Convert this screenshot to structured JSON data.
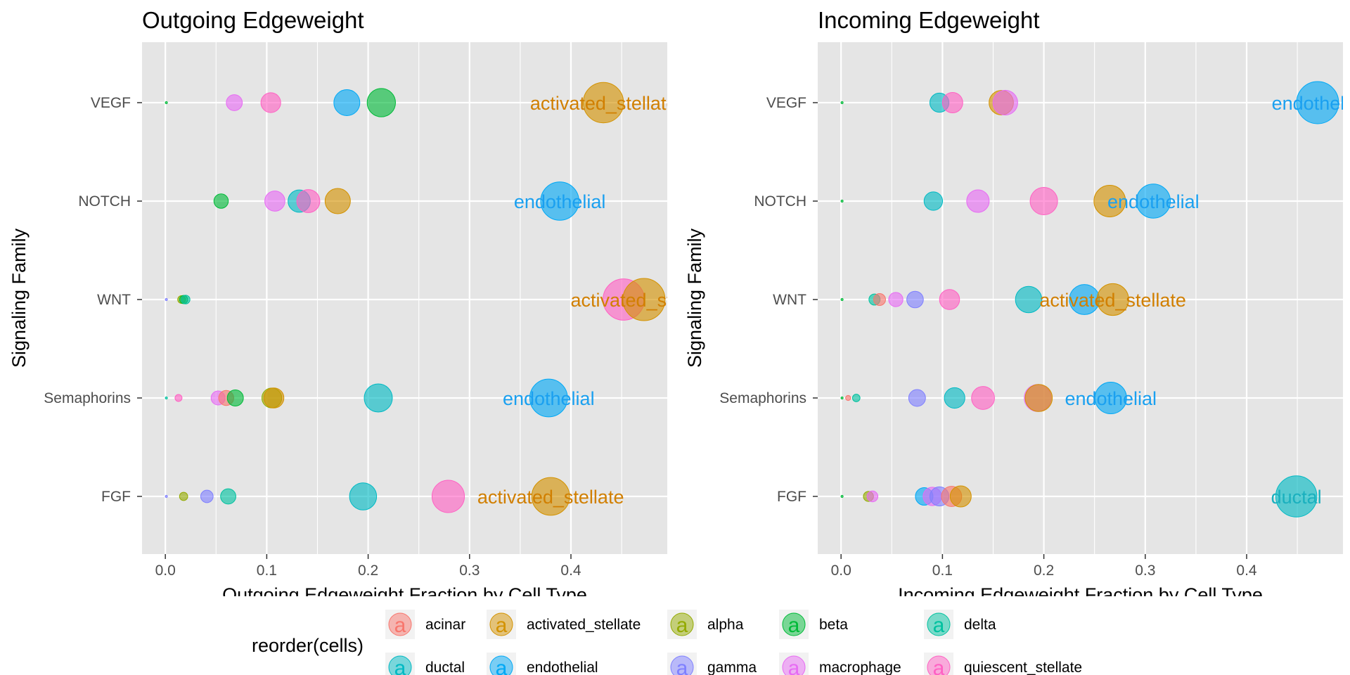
{
  "chart_data": [
    {
      "type": "scatter",
      "title": "Outgoing Edgeweight",
      "xlabel": "Outgoing Edgeweight Fraction by Cell Type",
      "ylabel": "Signaling Family",
      "xlim": [
        -0.023,
        0.495
      ],
      "x_ticks": [
        "0.0",
        "0.1",
        "0.2",
        "0.3",
        "0.4"
      ],
      "categories": [
        "FGF",
        "Semaphorins",
        "WNT",
        "NOTCH",
        "VEGF"
      ],
      "grid": true,
      "points": [
        {
          "family": "VEGF",
          "cell": "beta",
          "x": 0.001
        },
        {
          "family": "VEGF",
          "cell": "macrophage",
          "x": 0.068
        },
        {
          "family": "VEGF",
          "cell": "quiescent_stellate",
          "x": 0.104
        },
        {
          "family": "VEGF",
          "cell": "endothelial",
          "x": 0.179
        },
        {
          "family": "VEGF",
          "cell": "beta",
          "x": 0.213
        },
        {
          "family": "VEGF",
          "cell": "activated_stellate",
          "x": 0.432
        },
        {
          "family": "NOTCH",
          "cell": "beta",
          "x": 0.055
        },
        {
          "family": "NOTCH",
          "cell": "macrophage",
          "x": 0.108
        },
        {
          "family": "NOTCH",
          "cell": "ductal",
          "x": 0.132
        },
        {
          "family": "NOTCH",
          "cell": "quiescent_stellate",
          "x": 0.141
        },
        {
          "family": "NOTCH",
          "cell": "activated_stellate",
          "x": 0.17
        },
        {
          "family": "NOTCH",
          "cell": "endothelial",
          "x": 0.389
        },
        {
          "family": "WNT",
          "cell": "gamma",
          "x": 0.001
        },
        {
          "family": "WNT",
          "cell": "alpha",
          "x": 0.016
        },
        {
          "family": "WNT",
          "cell": "beta",
          "x": 0.018
        },
        {
          "family": "WNT",
          "cell": "delta",
          "x": 0.02
        },
        {
          "family": "WNT",
          "cell": "quiescent_stellate",
          "x": 0.452
        },
        {
          "family": "WNT",
          "cell": "activated_stellate",
          "x": 0.472
        },
        {
          "family": "Semaphorins",
          "cell": "delta",
          "x": 0.001
        },
        {
          "family": "Semaphorins",
          "cell": "quiescent_stellate",
          "x": 0.013
        },
        {
          "family": "Semaphorins",
          "cell": "macrophage",
          "x": 0.052
        },
        {
          "family": "Semaphorins",
          "cell": "acinar",
          "x": 0.06
        },
        {
          "family": "Semaphorins",
          "cell": "beta",
          "x": 0.069
        },
        {
          "family": "Semaphorins",
          "cell": "alpha",
          "x": 0.105
        },
        {
          "family": "Semaphorins",
          "cell": "activated_stellate",
          "x": 0.107
        },
        {
          "family": "Semaphorins",
          "cell": "ductal",
          "x": 0.21
        },
        {
          "family": "Semaphorins",
          "cell": "endothelial",
          "x": 0.378
        },
        {
          "family": "FGF",
          "cell": "gamma",
          "x": 0.001
        },
        {
          "family": "FGF",
          "cell": "alpha",
          "x": 0.018
        },
        {
          "family": "FGF",
          "cell": "gamma",
          "x": 0.041
        },
        {
          "family": "FGF",
          "cell": "delta",
          "x": 0.062
        },
        {
          "family": "FGF",
          "cell": "ductal",
          "x": 0.195
        },
        {
          "family": "FGF",
          "cell": "quiescent_stellate",
          "x": 0.279
        },
        {
          "family": "FGF",
          "cell": "activated_stellate",
          "x": 0.38
        }
      ],
      "annotations": [
        {
          "family": "VEGF",
          "text": "activated_stellate",
          "cell": "activated_stellate",
          "x": 0.432
        },
        {
          "family": "NOTCH",
          "text": "endothelial",
          "cell": "endothelial",
          "x": 0.389
        },
        {
          "family": "WNT",
          "text": "activated_stellate",
          "cell": "activated_stellate",
          "x": 0.472
        },
        {
          "family": "Semaphorins",
          "text": "endothelial",
          "cell": "endothelial",
          "x": 0.378
        },
        {
          "family": "FGF",
          "text": "activated_stellate",
          "cell": "activated_stellate",
          "x": 0.38
        }
      ]
    },
    {
      "type": "scatter",
      "title": "Incoming Edgeweight",
      "xlabel": "Incoming Edgeweight Fraction by Cell Type",
      "ylabel": "Signaling Family",
      "xlim": [
        -0.023,
        0.495
      ],
      "x_ticks": [
        "0.0",
        "0.1",
        "0.2",
        "0.3",
        "0.4"
      ],
      "categories": [
        "FGF",
        "Semaphorins",
        "WNT",
        "NOTCH",
        "VEGF"
      ],
      "grid": true,
      "points": [
        {
          "family": "VEGF",
          "cell": "beta",
          "x": 0.001
        },
        {
          "family": "VEGF",
          "cell": "ductal",
          "x": 0.097
        },
        {
          "family": "VEGF",
          "cell": "quiescent_stellate",
          "x": 0.11
        },
        {
          "family": "VEGF",
          "cell": "activated_stellate",
          "x": 0.158
        },
        {
          "family": "VEGF",
          "cell": "macrophage",
          "x": 0.162
        },
        {
          "family": "VEGF",
          "cell": "endothelial",
          "x": 0.47
        },
        {
          "family": "NOTCH",
          "cell": "beta",
          "x": 0.001
        },
        {
          "family": "NOTCH",
          "cell": "ductal",
          "x": 0.091
        },
        {
          "family": "NOTCH",
          "cell": "macrophage",
          "x": 0.135
        },
        {
          "family": "NOTCH",
          "cell": "quiescent_stellate",
          "x": 0.2
        },
        {
          "family": "NOTCH",
          "cell": "activated_stellate",
          "x": 0.265
        },
        {
          "family": "NOTCH",
          "cell": "endothelial",
          "x": 0.308
        },
        {
          "family": "WNT",
          "cell": "beta",
          "x": 0.001
        },
        {
          "family": "WNT",
          "cell": "delta",
          "x": 0.033
        },
        {
          "family": "WNT",
          "cell": "acinar",
          "x": 0.038
        },
        {
          "family": "WNT",
          "cell": "macrophage",
          "x": 0.054
        },
        {
          "family": "WNT",
          "cell": "gamma",
          "x": 0.073
        },
        {
          "family": "WNT",
          "cell": "quiescent_stellate",
          "x": 0.107
        },
        {
          "family": "WNT",
          "cell": "ductal",
          "x": 0.185
        },
        {
          "family": "WNT",
          "cell": "endothelial",
          "x": 0.24
        },
        {
          "family": "WNT",
          "cell": "activated_stellate",
          "x": 0.268
        },
        {
          "family": "Semaphorins",
          "cell": "beta",
          "x": 0.001
        },
        {
          "family": "Semaphorins",
          "cell": "acinar",
          "x": 0.007
        },
        {
          "family": "Semaphorins",
          "cell": "delta",
          "x": 0.015
        },
        {
          "family": "Semaphorins",
          "cell": "gamma",
          "x": 0.075
        },
        {
          "family": "Semaphorins",
          "cell": "ductal",
          "x": 0.112
        },
        {
          "family": "Semaphorins",
          "cell": "quiescent_stellate",
          "x": 0.14
        },
        {
          "family": "Semaphorins",
          "cell": "activated_stellate",
          "x": 0.195
        },
        {
          "family": "Semaphorins",
          "cell": "macrophage",
          "x": 0.194
        },
        {
          "family": "Semaphorins",
          "cell": "endothelial",
          "x": 0.266
        },
        {
          "family": "FGF",
          "cell": "beta",
          "x": 0.001
        },
        {
          "family": "FGF",
          "cell": "alpha",
          "x": 0.027
        },
        {
          "family": "FGF",
          "cell": "macrophage",
          "x": 0.031
        },
        {
          "family": "FGF",
          "cell": "endothelial",
          "x": 0.082
        },
        {
          "family": "FGF",
          "cell": "macrophage",
          "x": 0.09
        },
        {
          "family": "FGF",
          "cell": "gamma",
          "x": 0.097
        },
        {
          "family": "FGF",
          "cell": "acinar",
          "x": 0.109
        },
        {
          "family": "FGF",
          "cell": "activated_stellate",
          "x": 0.118
        },
        {
          "family": "FGF",
          "cell": "ductal",
          "x": 0.449
        }
      ],
      "annotations": [
        {
          "family": "VEGF",
          "text": "endothelial",
          "cell": "endothelial",
          "x": 0.47
        },
        {
          "family": "NOTCH",
          "text": "endothelial",
          "cell": "endothelial",
          "x": 0.308
        },
        {
          "family": "WNT",
          "text": "activated_stellate",
          "cell": "activated_stellate",
          "x": 0.268
        },
        {
          "family": "Semaphorins",
          "text": "endothelial",
          "cell": "endothelial",
          "x": 0.266
        },
        {
          "family": "FGF",
          "text": "ductal",
          "cell": "ductal",
          "x": 0.449
        }
      ]
    }
  ],
  "legend": {
    "title": "reorder(cells)",
    "placement": "bottom",
    "items": [
      {
        "cell": "acinar",
        "label": "acinar"
      },
      {
        "cell": "activated_stellate",
        "label": "activated_stellate"
      },
      {
        "cell": "alpha",
        "label": "alpha"
      },
      {
        "cell": "beta",
        "label": "beta"
      },
      {
        "cell": "delta",
        "label": "delta"
      },
      {
        "cell": "ductal",
        "label": "ductal"
      },
      {
        "cell": "endothelial",
        "label": "endothelial"
      },
      {
        "cell": "gamma",
        "label": "gamma"
      },
      {
        "cell": "macrophage",
        "label": "macrophage"
      },
      {
        "cell": "quiescent_stellate",
        "label": "quiescent_stellate"
      }
    ],
    "glyph": "a"
  },
  "colors": {
    "acinar": "#F8766D",
    "activated_stellate": "#D39200",
    "alpha": "#93AA00",
    "beta": "#00BA38",
    "delta": "#00C19F",
    "ductal": "#00B9C3",
    "endothelial": "#00A8F5",
    "gamma": "#7F80FF",
    "macrophage": "#E76BF3",
    "quiescent_stellate": "#FF61C3",
    "label_activated_stellate": "#D17F00",
    "label_endothelial": "#1AA0F0",
    "label_ductal": "#1AB0BE",
    "panel_background": "#E5E5E5",
    "grid": "#FFFFFF"
  }
}
